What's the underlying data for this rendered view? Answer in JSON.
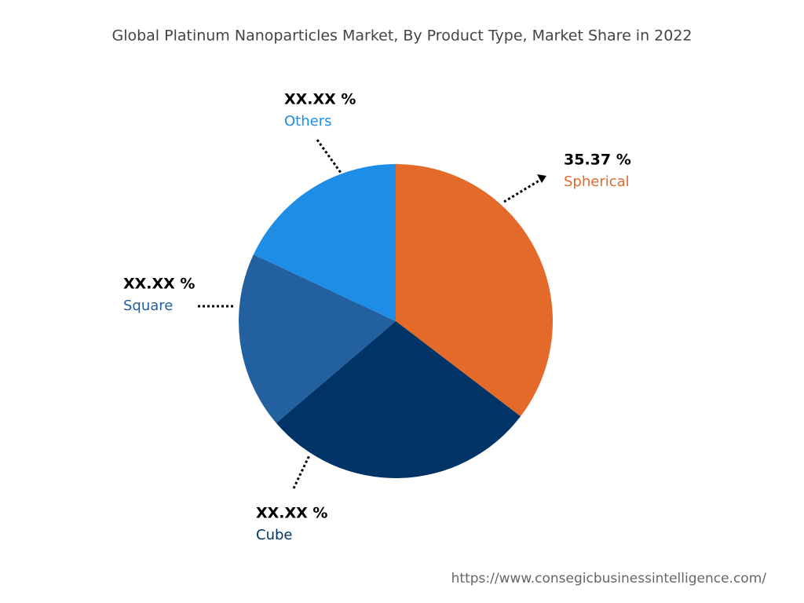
{
  "chart_data": {
    "type": "pie",
    "title": "Global Platinum Nanoparticles Market, By Product Type, Market Share in 2022",
    "categories": [
      "Spherical",
      "Cube",
      "Square",
      "Others"
    ],
    "values": [
      35.37,
      28.4,
      18.2,
      18.03
    ],
    "value_labels": [
      "35.37 %",
      "XX.XX %",
      "XX.XX %",
      "XX.XX %"
    ],
    "colors": [
      "#e36a28",
      "#003366",
      "#22609f",
      "#1e8de5"
    ],
    "source": "https://www.consegicbusinessintelligence.com/"
  }
}
